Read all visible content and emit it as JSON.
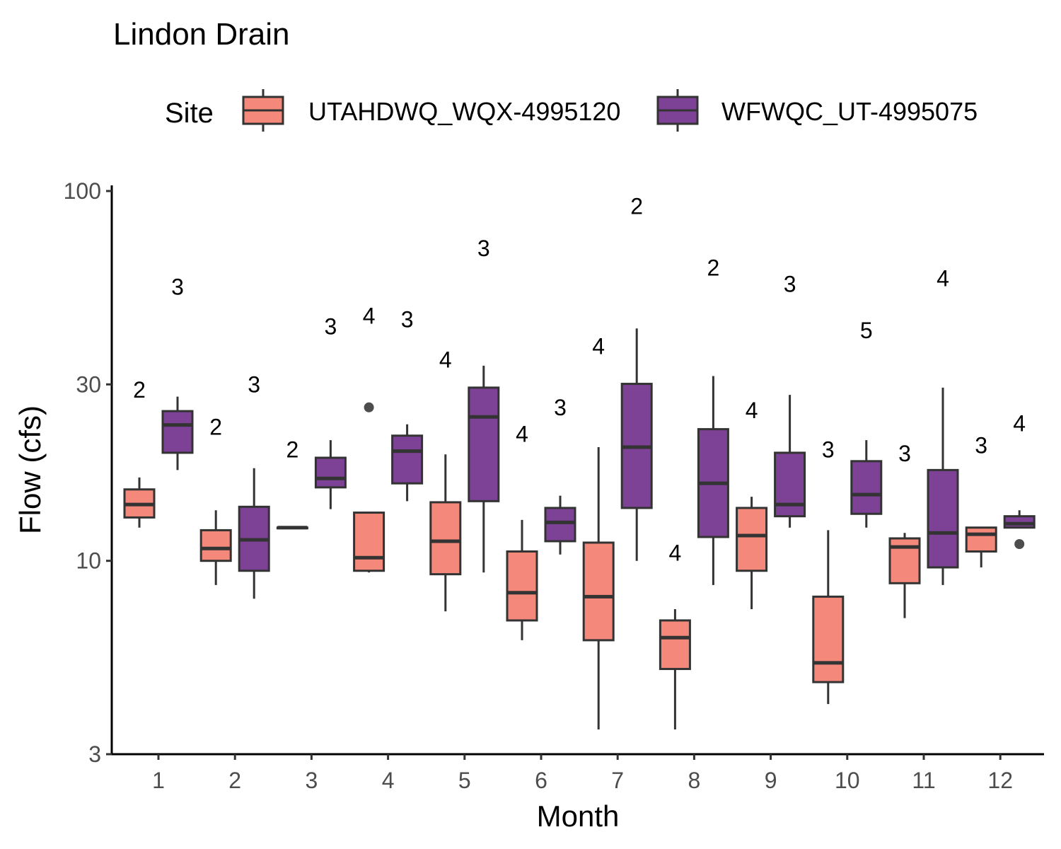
{
  "chart_data": {
    "type": "boxplot",
    "title": "Lindon Drain",
    "xlabel": "Month",
    "ylabel": "Flow (cfs)",
    "y_scale": "log10",
    "ylim": [
      3,
      100
    ],
    "y_ticks": [
      3,
      10,
      30,
      100
    ],
    "y_tick_labels": [
      "3",
      "10",
      "30",
      "100"
    ],
    "categories": [
      "1",
      "2",
      "3",
      "4",
      "5",
      "6",
      "7",
      "8",
      "9",
      "10",
      "11",
      "12"
    ],
    "legend": {
      "title": "Site",
      "position": "top"
    },
    "grid": false,
    "series": [
      {
        "name": "UTAHDWQ_WQX-4995120",
        "color": "#f4897b",
        "boxes": [
          {
            "month": "1",
            "whisker_low": 12.3,
            "q1": 13.1,
            "median": 14.2,
            "q3": 15.6,
            "whisker_high": 16.8,
            "outliers": [],
            "n_label": "2",
            "n_pos": 29.0
          },
          {
            "month": "2",
            "whisker_low": 8.6,
            "q1": 10.0,
            "median": 10.8,
            "q3": 12.1,
            "whisker_high": 13.7,
            "outliers": [],
            "n_label": "2",
            "n_pos": 23.0
          },
          {
            "month": "3",
            "whisker_low": 12.3,
            "q1": 12.3,
            "median": 12.3,
            "q3": 12.3,
            "whisker_high": 12.3,
            "outliers": [],
            "n_label": "2",
            "n_pos": 20.0
          },
          {
            "month": "4",
            "whisker_low": 9.3,
            "q1": 9.4,
            "median": 10.2,
            "q3": 13.5,
            "whisker_high": 13.5,
            "outliers": [
              26.0
            ],
            "n_label": "4",
            "n_pos": 46.0
          },
          {
            "month": "5",
            "whisker_low": 7.3,
            "q1": 9.2,
            "median": 11.3,
            "q3": 14.4,
            "whisker_high": 19.4,
            "outliers": [],
            "n_label": "4",
            "n_pos": 35.0
          },
          {
            "month": "6",
            "whisker_low": 6.1,
            "q1": 6.9,
            "median": 8.2,
            "q3": 10.6,
            "whisker_high": 12.9,
            "outliers": [],
            "n_label": "4",
            "n_pos": 22.0
          },
          {
            "month": "7",
            "whisker_low": 3.5,
            "q1": 6.1,
            "median": 8.0,
            "q3": 11.2,
            "whisker_high": 20.3,
            "outliers": [],
            "n_label": "4",
            "n_pos": 38.0
          },
          {
            "month": "8",
            "whisker_low": 3.5,
            "q1": 5.1,
            "median": 6.2,
            "q3": 6.9,
            "whisker_high": 7.4,
            "outliers": [],
            "n_label": "4",
            "n_pos": 10.5
          },
          {
            "month": "9",
            "whisker_low": 7.4,
            "q1": 9.4,
            "median": 11.7,
            "q3": 13.9,
            "whisker_high": 14.9,
            "outliers": [],
            "n_label": "4",
            "n_pos": 25.5
          },
          {
            "month": "10",
            "whisker_low": 4.1,
            "q1": 4.7,
            "median": 5.3,
            "q3": 8.0,
            "whisker_high": 12.1,
            "outliers": [],
            "n_label": "3",
            "n_pos": 20.0
          },
          {
            "month": "11",
            "whisker_low": 7.0,
            "q1": 8.7,
            "median": 10.9,
            "q3": 11.5,
            "whisker_high": 11.9,
            "outliers": [],
            "n_label": "3",
            "n_pos": 19.5
          },
          {
            "month": "12",
            "whisker_low": 9.6,
            "q1": 10.6,
            "median": 11.8,
            "q3": 12.3,
            "whisker_high": 12.3,
            "outliers": [],
            "n_label": "3",
            "n_pos": 20.5
          }
        ]
      },
      {
        "name": "WFWQC_UT-4995075",
        "color": "#7d4196",
        "boxes": [
          {
            "month": "1",
            "whisker_low": 17.6,
            "q1": 19.6,
            "median": 23.3,
            "q3": 25.4,
            "whisker_high": 27.8,
            "outliers": [],
            "n_label": "3",
            "n_pos": 55.0
          },
          {
            "month": "2",
            "whisker_low": 7.9,
            "q1": 9.4,
            "median": 11.4,
            "q3": 14.0,
            "whisker_high": 17.8,
            "outliers": [],
            "n_label": "3",
            "n_pos": 30.0
          },
          {
            "month": "3",
            "whisker_low": 13.8,
            "q1": 15.8,
            "median": 16.7,
            "q3": 19.0,
            "whisker_high": 21.2,
            "outliers": [],
            "n_label": "3",
            "n_pos": 43.0
          },
          {
            "month": "4",
            "whisker_low": 14.5,
            "q1": 16.2,
            "median": 19.8,
            "q3": 21.8,
            "whisker_high": 23.4,
            "outliers": [],
            "n_label": "3",
            "n_pos": 45.0
          },
          {
            "month": "5",
            "whisker_low": 9.3,
            "q1": 14.5,
            "median": 24.5,
            "q3": 29.4,
            "whisker_high": 33.7,
            "outliers": [],
            "n_label": "3",
            "n_pos": 70.0
          },
          {
            "month": "6",
            "whisker_low": 10.4,
            "q1": 11.3,
            "median": 12.7,
            "q3": 13.9,
            "whisker_high": 15.0,
            "outliers": [],
            "n_label": "3",
            "n_pos": 26.0
          },
          {
            "month": "7",
            "whisker_low": 10.0,
            "q1": 13.9,
            "median": 20.3,
            "q3": 30.1,
            "whisker_high": 42.5,
            "outliers": [],
            "n_label": "2",
            "n_pos": 91.0
          },
          {
            "month": "8",
            "whisker_low": 8.6,
            "q1": 11.6,
            "median": 16.2,
            "q3": 22.7,
            "whisker_high": 31.6,
            "outliers": [],
            "n_label": "2",
            "n_pos": 62.0
          },
          {
            "month": "9",
            "whisker_low": 12.3,
            "q1": 13.2,
            "median": 14.2,
            "q3": 19.6,
            "whisker_high": 28.1,
            "outliers": [],
            "n_label": "3",
            "n_pos": 56.0
          },
          {
            "month": "10",
            "whisker_low": 12.3,
            "q1": 13.4,
            "median": 15.1,
            "q3": 18.6,
            "whisker_high": 21.2,
            "outliers": [],
            "n_label": "5",
            "n_pos": 42.0
          },
          {
            "month": "11",
            "whisker_low": 8.6,
            "q1": 9.6,
            "median": 11.9,
            "q3": 17.6,
            "whisker_high": 29.4,
            "outliers": [],
            "n_label": "4",
            "n_pos": 58.0
          },
          {
            "month": "12",
            "whisker_low": 12.3,
            "q1": 12.3,
            "median": 12.6,
            "q3": 13.2,
            "whisker_high": 13.7,
            "outliers": [
              11.1
            ],
            "n_label": "4",
            "n_pos": 23.5
          }
        ]
      }
    ]
  }
}
